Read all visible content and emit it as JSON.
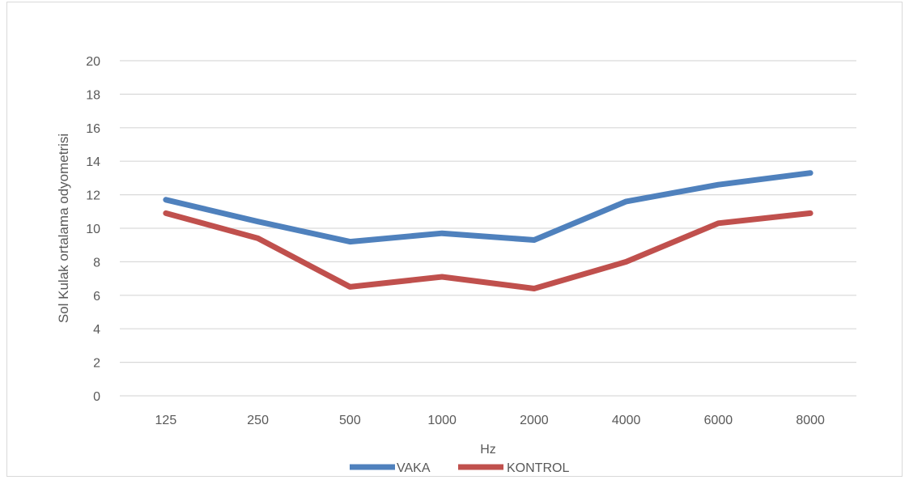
{
  "chart_data": {
    "type": "line",
    "title": "",
    "xlabel": "Hz",
    "ylabel": "Sol Kulak ortalama odyometrisi",
    "categories": [
      "125",
      "250",
      "500",
      "1000",
      "2000",
      "4000",
      "6000",
      "8000"
    ],
    "ylim": [
      0,
      20
    ],
    "yticks": [
      0,
      2,
      4,
      6,
      8,
      10,
      12,
      14,
      16,
      18,
      20
    ],
    "grid": true,
    "legend": "bottom",
    "series": [
      {
        "name": "VAKA",
        "color": "#4f81bd",
        "values": [
          11.7,
          10.4,
          9.2,
          9.7,
          9.3,
          11.6,
          12.6,
          13.3
        ]
      },
      {
        "name": "KONTROL",
        "color": "#c0504d",
        "values": [
          10.9,
          9.4,
          6.5,
          7.1,
          6.4,
          8.0,
          10.3,
          10.9
        ]
      }
    ]
  }
}
